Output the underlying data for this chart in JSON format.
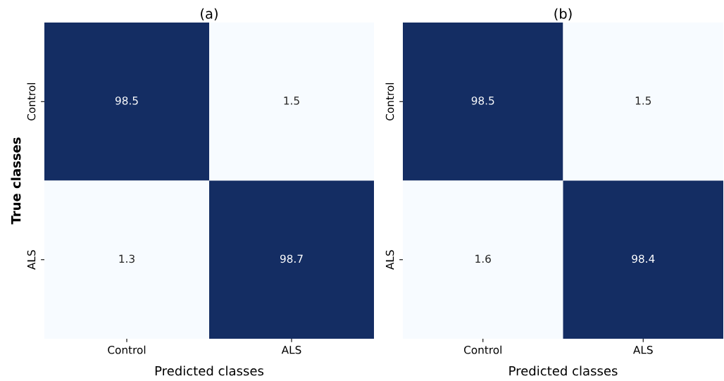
{
  "chart_data": [
    {
      "type": "heatmap",
      "title": "(a)",
      "xlabel": "Predicted classes",
      "ylabel": "True classes",
      "categories": [
        "Control",
        "ALS"
      ],
      "y_categories": [
        "Control",
        "ALS"
      ],
      "cells": [
        [
          98.5,
          1.5
        ],
        [
          1.3,
          98.7
        ]
      ],
      "colors": [
        "#f7fbff",
        "#142d63"
      ],
      "data_labels": true
    },
    {
      "type": "heatmap",
      "title": "(b)",
      "xlabel": "Predicted classes",
      "categories": [
        "Control",
        "ALS"
      ],
      "y_categories": [
        "Control",
        "ALS"
      ],
      "cells": [
        [
          98.5,
          1.5
        ],
        [
          1.6,
          98.4
        ]
      ],
      "colors": [
        "#f7fbff",
        "#142d63"
      ],
      "data_labels": true
    }
  ]
}
